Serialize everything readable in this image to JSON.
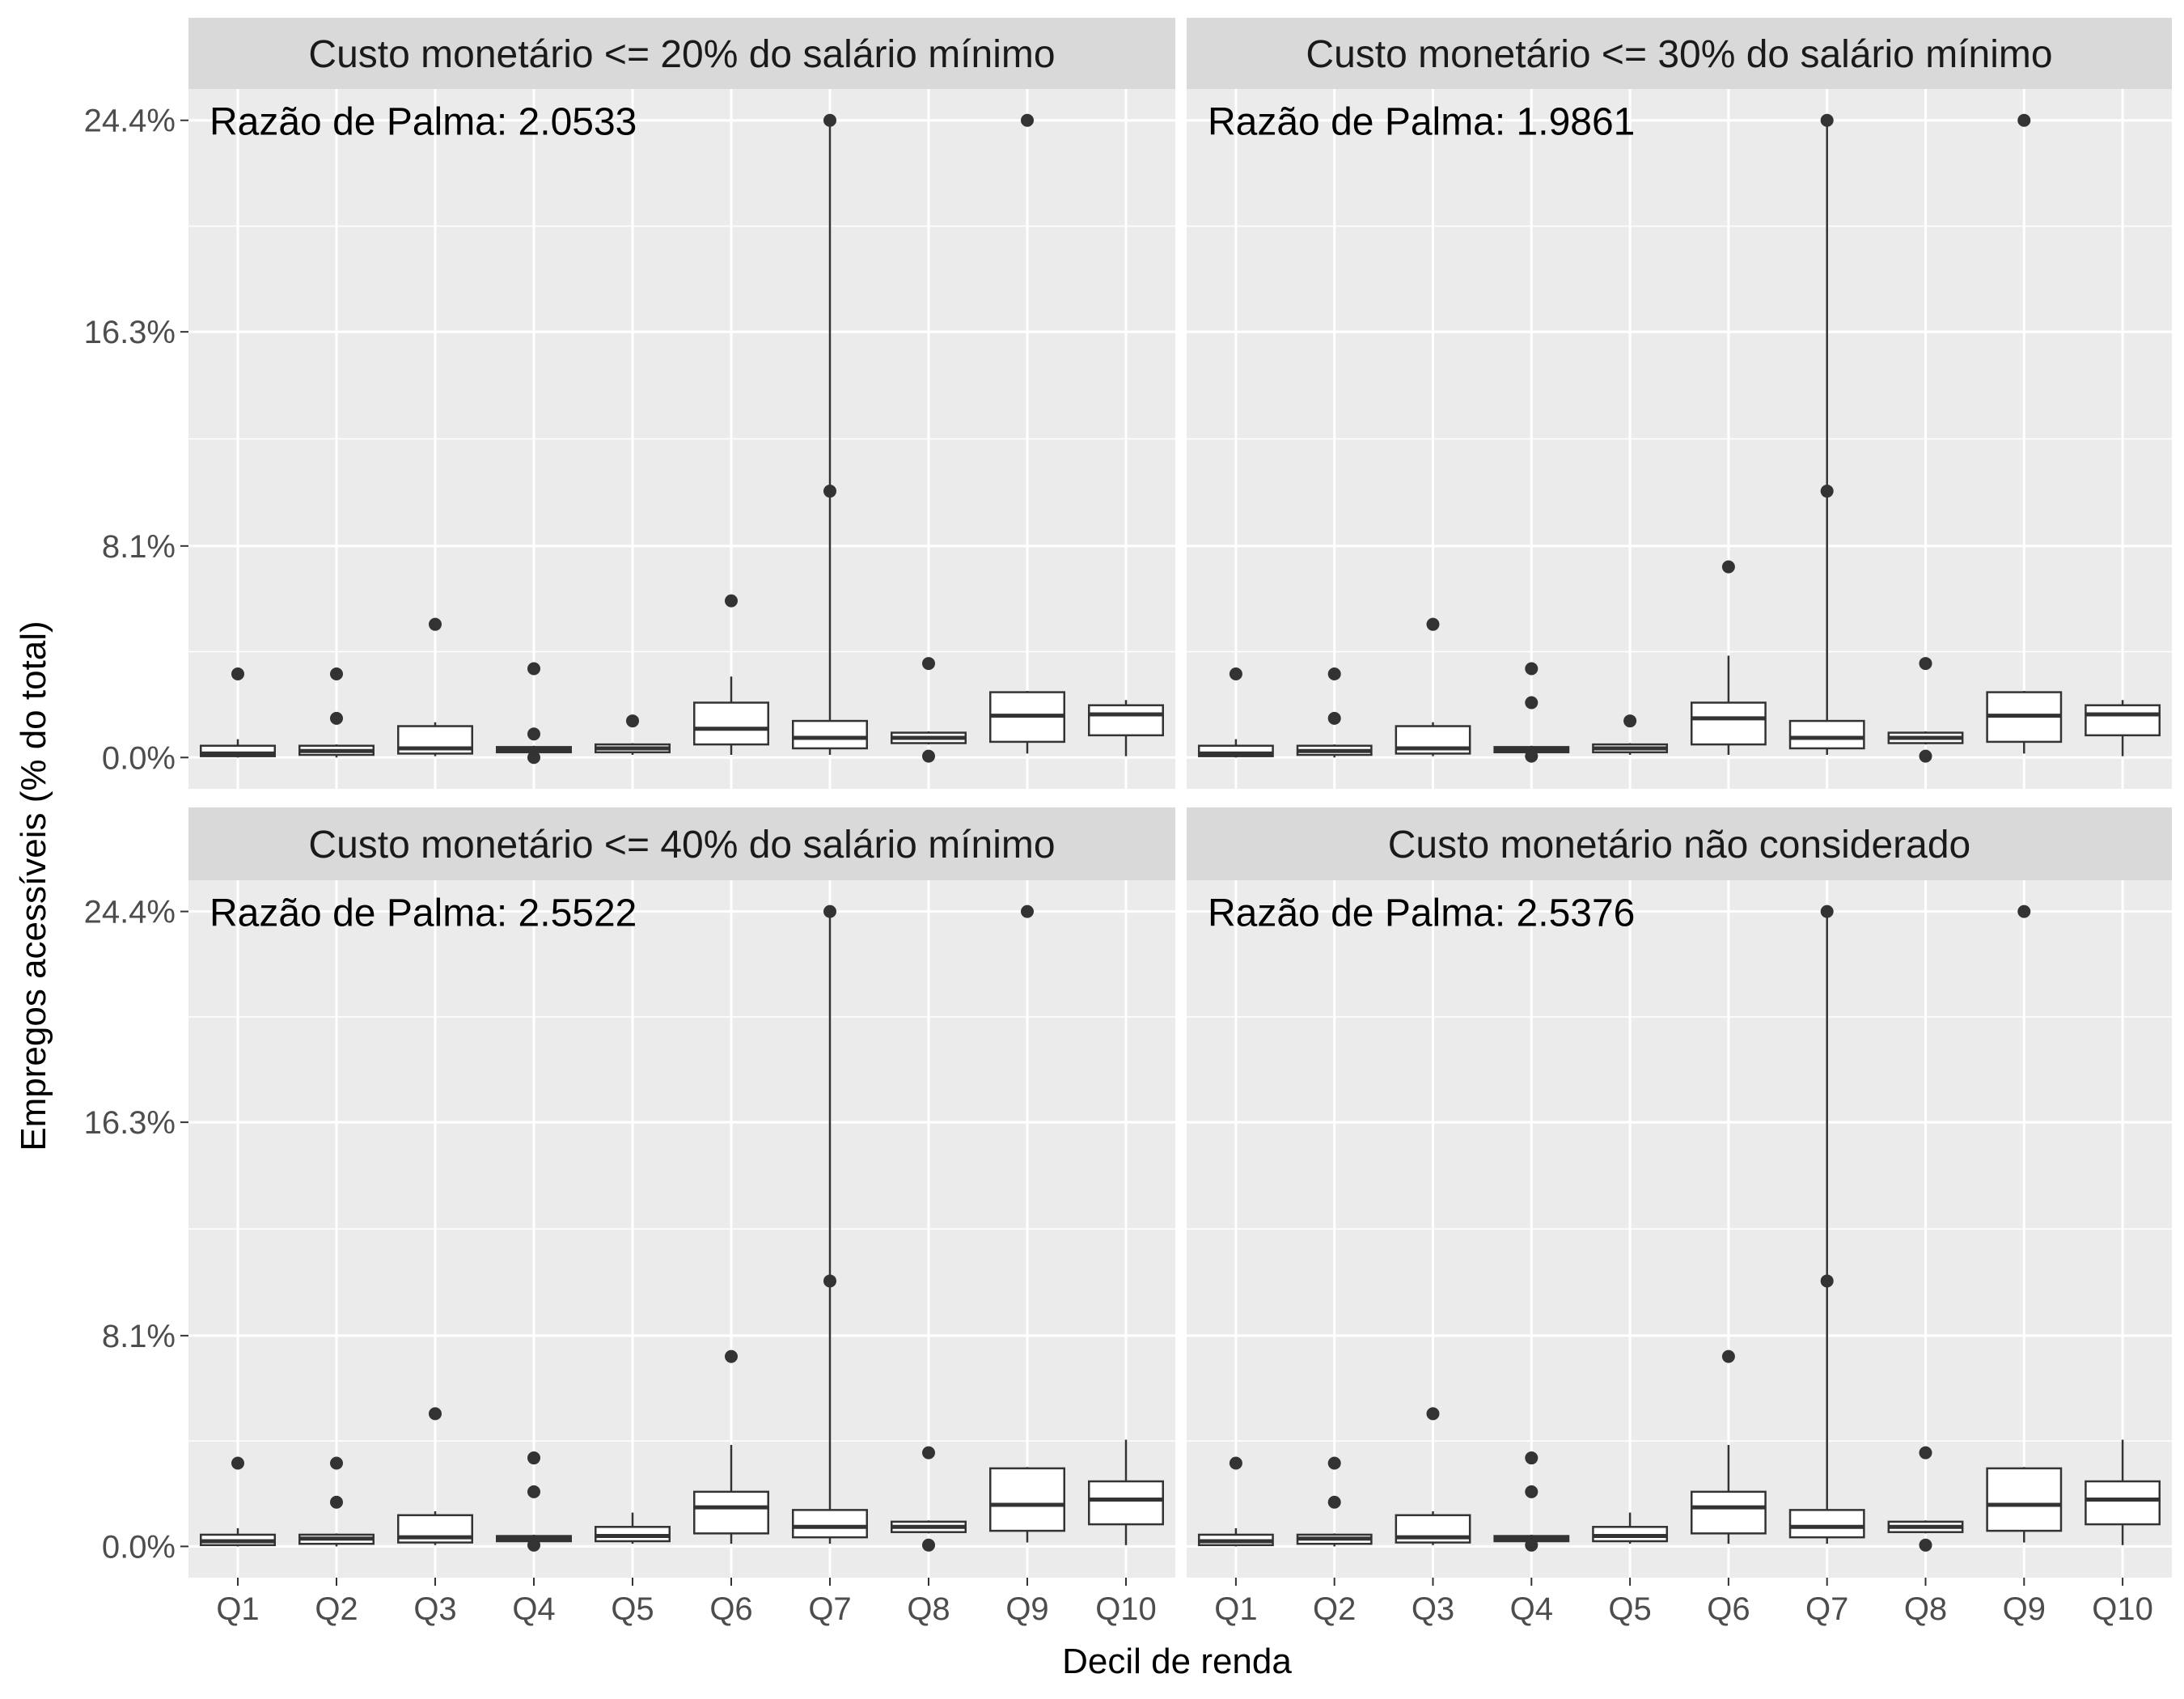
{
  "chart_data": {
    "type": "boxplot",
    "xlabel": "Decil de renda",
    "ylabel": "Empregos acessíveis (% do total)",
    "categories": [
      "Q1",
      "Q2",
      "Q3",
      "Q4",
      "Q5",
      "Q6",
      "Q7",
      "Q8",
      "Q9",
      "Q10"
    ],
    "y_ticks": [
      0.0,
      8.1,
      16.3,
      24.4
    ],
    "y_tick_labels": [
      "0.0%",
      "8.1%",
      "16.3%",
      "24.4%"
    ],
    "ylim": [
      -1.2,
      25.6
    ],
    "grid": true,
    "facets": [
      {
        "title": "Custo monetário <= 20% do salário mínimo",
        "annotation": "Razão de Palma: 2.0533",
        "boxes": [
          {
            "category": "Q1",
            "whisker_low": 0.0,
            "q1": 0.05,
            "median": 0.15,
            "q3": 0.45,
            "whisker_high": 0.7,
            "outliers": [
              3.2
            ]
          },
          {
            "category": "Q2",
            "whisker_low": 0.0,
            "q1": 0.1,
            "median": 0.25,
            "q3": 0.45,
            "whisker_high": 0.5,
            "outliers": [
              1.5,
              3.2
            ]
          },
          {
            "category": "Q3",
            "whisker_low": 0.05,
            "q1": 0.15,
            "median": 0.35,
            "q3": 1.2,
            "whisker_high": 1.35,
            "outliers": [
              5.1
            ]
          },
          {
            "category": "Q4",
            "whisker_low": 0.1,
            "q1": 0.2,
            "median": 0.3,
            "q3": 0.4,
            "whisker_high": 0.45,
            "outliers": [
              0.0,
              0.9,
              3.4
            ]
          },
          {
            "category": "Q5",
            "whisker_low": 0.1,
            "q1": 0.2,
            "median": 0.35,
            "q3": 0.5,
            "whisker_high": 0.55,
            "outliers": [
              1.4
            ]
          },
          {
            "category": "Q6",
            "whisker_low": 0.1,
            "q1": 0.5,
            "median": 1.1,
            "q3": 2.1,
            "whisker_high": 3.1,
            "outliers": [
              6.0
            ]
          },
          {
            "category": "Q7",
            "whisker_low": 0.1,
            "q1": 0.35,
            "median": 0.75,
            "q3": 1.4,
            "whisker_high": 24.4,
            "outliers": [
              24.4,
              10.2
            ]
          },
          {
            "category": "Q8",
            "whisker_low": 0.5,
            "q1": 0.55,
            "median": 0.75,
            "q3": 0.95,
            "whisker_high": 1.0,
            "outliers": [
              0.05,
              3.6
            ]
          },
          {
            "category": "Q9",
            "whisker_low": 0.15,
            "q1": 0.6,
            "median": 1.6,
            "q3": 2.5,
            "whisker_high": 2.55,
            "outliers": [
              24.4
            ]
          },
          {
            "category": "Q10",
            "whisker_low": 0.05,
            "q1": 0.85,
            "median": 1.65,
            "q3": 2.0,
            "whisker_high": 2.2,
            "outliers": []
          }
        ]
      },
      {
        "title": "Custo monetário <= 30% do salário mínimo",
        "annotation": "Razão de Palma: 1.9861",
        "boxes": [
          {
            "category": "Q1",
            "whisker_low": 0.0,
            "q1": 0.05,
            "median": 0.15,
            "q3": 0.45,
            "whisker_high": 0.7,
            "outliers": [
              3.2
            ]
          },
          {
            "category": "Q2",
            "whisker_low": 0.0,
            "q1": 0.1,
            "median": 0.25,
            "q3": 0.45,
            "whisker_high": 0.5,
            "outliers": [
              1.5,
              3.2
            ]
          },
          {
            "category": "Q3",
            "whisker_low": 0.05,
            "q1": 0.15,
            "median": 0.35,
            "q3": 1.2,
            "whisker_high": 1.35,
            "outliers": [
              5.1
            ]
          },
          {
            "category": "Q4",
            "whisker_low": 0.1,
            "q1": 0.2,
            "median": 0.3,
            "q3": 0.4,
            "whisker_high": 0.45,
            "outliers": [
              0.05,
              2.1,
              3.4
            ]
          },
          {
            "category": "Q5",
            "whisker_low": 0.1,
            "q1": 0.2,
            "median": 0.35,
            "q3": 0.5,
            "whisker_high": 0.55,
            "outliers": [
              1.4
            ]
          },
          {
            "category": "Q6",
            "whisker_low": 0.1,
            "q1": 0.5,
            "median": 1.5,
            "q3": 2.1,
            "whisker_high": 3.9,
            "outliers": [
              7.3
            ]
          },
          {
            "category": "Q7",
            "whisker_low": 0.1,
            "q1": 0.35,
            "median": 0.75,
            "q3": 1.4,
            "whisker_high": 24.4,
            "outliers": [
              24.4,
              10.2
            ]
          },
          {
            "category": "Q8",
            "whisker_low": 0.5,
            "q1": 0.55,
            "median": 0.75,
            "q3": 0.95,
            "whisker_high": 1.0,
            "outliers": [
              0.05,
              3.6
            ]
          },
          {
            "category": "Q9",
            "whisker_low": 0.15,
            "q1": 0.6,
            "median": 1.6,
            "q3": 2.5,
            "whisker_high": 2.55,
            "outliers": [
              24.4
            ]
          },
          {
            "category": "Q10",
            "whisker_low": 0.05,
            "q1": 0.85,
            "median": 1.65,
            "q3": 2.0,
            "whisker_high": 2.2,
            "outliers": []
          }
        ]
      },
      {
        "title": "Custo monetário <= 40% do salário mínimo",
        "annotation": "Razão de Palma: 2.5522",
        "boxes": [
          {
            "category": "Q1",
            "whisker_low": 0.0,
            "q1": 0.05,
            "median": 0.2,
            "q3": 0.45,
            "whisker_high": 0.7,
            "outliers": [
              3.2
            ]
          },
          {
            "category": "Q2",
            "whisker_low": 0.0,
            "q1": 0.1,
            "median": 0.3,
            "q3": 0.45,
            "whisker_high": 0.5,
            "outliers": [
              1.7,
              3.2
            ]
          },
          {
            "category": "Q3",
            "whisker_low": 0.05,
            "q1": 0.15,
            "median": 0.35,
            "q3": 1.2,
            "whisker_high": 1.35,
            "outliers": [
              5.1
            ]
          },
          {
            "category": "Q4",
            "whisker_low": 0.1,
            "q1": 0.2,
            "median": 0.3,
            "q3": 0.4,
            "whisker_high": 0.45,
            "outliers": [
              0.05,
              2.1,
              3.4
            ]
          },
          {
            "category": "Q5",
            "whisker_low": 0.1,
            "q1": 0.2,
            "median": 0.4,
            "q3": 0.75,
            "whisker_high": 1.3,
            "outliers": []
          },
          {
            "category": "Q6",
            "whisker_low": 0.1,
            "q1": 0.5,
            "median": 1.5,
            "q3": 2.1,
            "whisker_high": 3.9,
            "outliers": [
              7.3
            ]
          },
          {
            "category": "Q7",
            "whisker_low": 0.1,
            "q1": 0.35,
            "median": 0.75,
            "q3": 1.4,
            "whisker_high": 24.4,
            "outliers": [
              24.4,
              10.2
            ]
          },
          {
            "category": "Q8",
            "whisker_low": 0.5,
            "q1": 0.55,
            "median": 0.75,
            "q3": 0.95,
            "whisker_high": 1.0,
            "outliers": [
              0.05,
              3.6
            ]
          },
          {
            "category": "Q9",
            "whisker_low": 0.15,
            "q1": 0.6,
            "median": 1.6,
            "q3": 3.0,
            "whisker_high": 3.05,
            "outliers": [
              24.4
            ]
          },
          {
            "category": "Q10",
            "whisker_low": 0.05,
            "q1": 0.85,
            "median": 1.8,
            "q3": 2.5,
            "whisker_high": 4.1,
            "outliers": []
          }
        ]
      },
      {
        "title": "Custo monetário não considerado",
        "annotation": "Razão de Palma: 2.5376",
        "boxes": [
          {
            "category": "Q1",
            "whisker_low": 0.0,
            "q1": 0.05,
            "median": 0.2,
            "q3": 0.45,
            "whisker_high": 0.7,
            "outliers": [
              3.2
            ]
          },
          {
            "category": "Q2",
            "whisker_low": 0.0,
            "q1": 0.1,
            "median": 0.3,
            "q3": 0.45,
            "whisker_high": 0.5,
            "outliers": [
              1.7,
              3.2
            ]
          },
          {
            "category": "Q3",
            "whisker_low": 0.05,
            "q1": 0.15,
            "median": 0.35,
            "q3": 1.2,
            "whisker_high": 1.35,
            "outliers": [
              5.1
            ]
          },
          {
            "category": "Q4",
            "whisker_low": 0.1,
            "q1": 0.2,
            "median": 0.3,
            "q3": 0.4,
            "whisker_high": 0.45,
            "outliers": [
              0.05,
              2.1,
              3.4
            ]
          },
          {
            "category": "Q5",
            "whisker_low": 0.1,
            "q1": 0.2,
            "median": 0.4,
            "q3": 0.75,
            "whisker_high": 1.3,
            "outliers": []
          },
          {
            "category": "Q6",
            "whisker_low": 0.1,
            "q1": 0.5,
            "median": 1.5,
            "q3": 2.1,
            "whisker_high": 3.9,
            "outliers": [
              7.3
            ]
          },
          {
            "category": "Q7",
            "whisker_low": 0.1,
            "q1": 0.35,
            "median": 0.75,
            "q3": 1.4,
            "whisker_high": 24.4,
            "outliers": [
              24.4,
              10.2
            ]
          },
          {
            "category": "Q8",
            "whisker_low": 0.5,
            "q1": 0.55,
            "median": 0.75,
            "q3": 0.95,
            "whisker_high": 1.0,
            "outliers": [
              0.05,
              3.6
            ]
          },
          {
            "category": "Q9",
            "whisker_low": 0.15,
            "q1": 0.6,
            "median": 1.6,
            "q3": 3.0,
            "whisker_high": 3.05,
            "outliers": [
              24.4
            ]
          },
          {
            "category": "Q10",
            "whisker_low": 0.05,
            "q1": 0.85,
            "median": 1.8,
            "q3": 2.5,
            "whisker_high": 4.1,
            "outliers": []
          }
        ]
      }
    ]
  },
  "colors": {
    "panel_background": "#ebebeb",
    "strip_background": "#d9d9d9",
    "grid_line": "#ffffff",
    "box_fill": "#ffffff",
    "box_stroke": "#333333",
    "outlier": "#333333",
    "tick_text": "#4d4d4d"
  }
}
